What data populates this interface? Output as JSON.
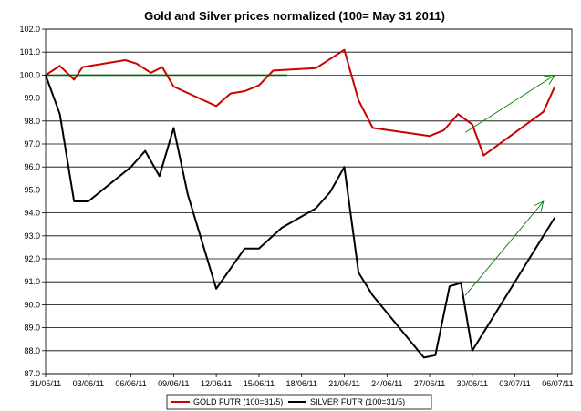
{
  "chart_data": {
    "type": "line",
    "title": "Gold and Silver prices normalized (100= May 31 2011)",
    "ylim": [
      87.0,
      102.0
    ],
    "ystep": 1.0,
    "xlim": [
      0,
      37
    ],
    "x_ticks": [
      {
        "day": 0,
        "label": "31/05/11"
      },
      {
        "day": 3,
        "label": "03/06/11"
      },
      {
        "day": 6,
        "label": "06/06/11"
      },
      {
        "day": 9,
        "label": "09/06/11"
      },
      {
        "day": 12,
        "label": "12/06/11"
      },
      {
        "day": 15,
        "label": "15/06/11"
      },
      {
        "day": 18,
        "label": "18/06/11"
      },
      {
        "day": 21,
        "label": "21/06/11"
      },
      {
        "day": 24,
        "label": "24/06/11"
      },
      {
        "day": 27,
        "label": "27/06/11"
      },
      {
        "day": 30,
        "label": "30/06/11"
      },
      {
        "day": 33,
        "label": "03/07/11"
      },
      {
        "day": 36,
        "label": "06/07/11"
      }
    ],
    "series": [
      {
        "name": "GOLD  FUTR (100=31/5)",
        "color": "#cc0000",
        "points": [
          [
            0,
            100.0
          ],
          [
            1,
            100.4
          ],
          [
            2,
            99.8
          ],
          [
            2.6,
            100.35
          ],
          [
            5.6,
            100.65
          ],
          [
            6.4,
            100.5
          ],
          [
            7.4,
            100.1
          ],
          [
            8.2,
            100.35
          ],
          [
            9.0,
            99.5
          ],
          [
            12.0,
            98.65
          ],
          [
            13.0,
            99.2
          ],
          [
            14.0,
            99.3
          ],
          [
            15.0,
            99.55
          ],
          [
            16.0,
            100.2
          ],
          [
            19.0,
            100.3
          ],
          [
            21.0,
            101.1
          ],
          [
            22.0,
            98.9
          ],
          [
            23.0,
            97.7
          ],
          [
            27.0,
            97.35
          ],
          [
            28.0,
            97.6
          ],
          [
            29.0,
            98.3
          ],
          [
            30.0,
            97.85
          ],
          [
            30.8,
            96.5
          ],
          [
            35.0,
            98.4
          ],
          [
            35.8,
            99.5
          ]
        ]
      },
      {
        "name": "SILVER  FUTR (100=31/5)",
        "color": "#000000",
        "points": [
          [
            0,
            100.0
          ],
          [
            1,
            98.3
          ],
          [
            2.0,
            94.5
          ],
          [
            3.0,
            94.5
          ],
          [
            6.0,
            96.0
          ],
          [
            7.0,
            96.7
          ],
          [
            8.0,
            95.6
          ],
          [
            9.0,
            97.7
          ],
          [
            10.0,
            94.8
          ],
          [
            12.0,
            90.7
          ],
          [
            14.0,
            92.45
          ],
          [
            15.0,
            92.45
          ],
          [
            16.6,
            93.35
          ],
          [
            19.0,
            94.2
          ],
          [
            20.0,
            94.9
          ],
          [
            21.0,
            96.0
          ],
          [
            22.0,
            91.4
          ],
          [
            23.0,
            90.4
          ],
          [
            26.6,
            87.7
          ],
          [
            27.4,
            87.8
          ],
          [
            28.4,
            90.8
          ],
          [
            29.2,
            90.95
          ],
          [
            30.0,
            88.0
          ],
          [
            35.8,
            93.8
          ]
        ]
      }
    ],
    "reference_line": {
      "y": 100.0,
      "from_day": 0,
      "to_day": 37,
      "color": "#008000"
    },
    "annotations": [
      {
        "type": "horizontal-segment",
        "y": 100.0,
        "from_day": 0,
        "to_day": 17,
        "color": "#006400"
      },
      {
        "type": "arrow",
        "from": [
          29.5,
          97.5
        ],
        "to": [
          35.8,
          100.0
        ],
        "color": "#008000"
      },
      {
        "type": "arrow",
        "from": [
          29.5,
          90.4
        ],
        "to": [
          35.0,
          94.5
        ],
        "color": "#008000"
      }
    ],
    "legend": {
      "position": "bottom-center"
    }
  }
}
